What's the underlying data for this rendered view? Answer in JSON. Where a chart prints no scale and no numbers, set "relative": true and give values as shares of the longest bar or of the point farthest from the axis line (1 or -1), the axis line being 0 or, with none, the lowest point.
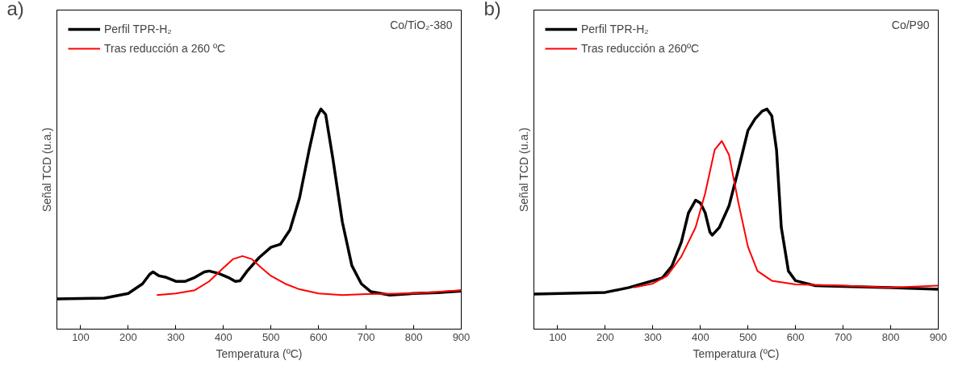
{
  "chart_data": [
    {
      "type": "line",
      "relative": true,
      "xlabel": "Temperatura (ºC)",
      "ylabel": "Señal TCD (u.a.)",
      "xlim": [
        50,
        900
      ],
      "xticks": [
        100,
        200,
        300,
        400,
        500,
        600,
        700,
        800,
        900
      ],
      "tick_labels": "x",
      "grid": false,
      "legend": "top left",
      "marker": "none",
      "line_style": "solid",
      "annotations": [
        "a)",
        "Co/TiO₂-380"
      ],
      "series": [
        {
          "name": "Perfil TPR-H₂",
          "color": "#000000",
          "x": [
            50,
            150,
            200,
            230,
            245,
            252,
            265,
            280,
            300,
            320,
            340,
            360,
            370,
            390,
            410,
            425,
            435,
            450,
            475,
            500,
            520,
            540,
            560,
            580,
            595,
            605,
            615,
            630,
            650,
            670,
            690,
            710,
            750,
            800,
            850,
            900
          ],
          "values": [
            0.137,
            0.141,
            0.162,
            0.206,
            0.249,
            0.26,
            0.242,
            0.235,
            0.217,
            0.217,
            0.235,
            0.26,
            0.264,
            0.253,
            0.235,
            0.217,
            0.22,
            0.264,
            0.325,
            0.372,
            0.386,
            0.451,
            0.596,
            0.812,
            0.957,
            1,
            0.975,
            0.776,
            0.487,
            0.289,
            0.206,
            0.17,
            0.155,
            0.162,
            0.166,
            0.173
          ]
        },
        {
          "name": "Tras reducción a 260 ºC",
          "color": "#ff0000",
          "x": [
            260,
            300,
            340,
            370,
            400,
            420,
            440,
            460,
            480,
            500,
            530,
            560,
            600,
            650,
            700,
            800,
            900
          ],
          "values": [
            0.155,
            0.162,
            0.177,
            0.217,
            0.278,
            0.318,
            0.332,
            0.318,
            0.278,
            0.242,
            0.206,
            0.181,
            0.162,
            0.155,
            0.159,
            0.162,
            0.177
          ]
        }
      ]
    },
    {
      "type": "line",
      "relative": true,
      "xlabel": "Temperatura (ºC)",
      "ylabel": "Señal TCD (u.a.)",
      "xlim": [
        50,
        900
      ],
      "xticks": [
        100,
        200,
        300,
        400,
        500,
        600,
        700,
        800,
        900
      ],
      "tick_labels": "x",
      "grid": false,
      "legend": "top left",
      "marker": "none",
      "line_style": "solid",
      "annotations": [
        "b)",
        "Co/P90"
      ],
      "series": [
        {
          "name": "Perfil TPR-H₂",
          "color": "#000000",
          "x": [
            50,
            200,
            250,
            300,
            320,
            340,
            360,
            375,
            390,
            400,
            410,
            420,
            425,
            440,
            460,
            480,
            500,
            515,
            530,
            540,
            550,
            560,
            570,
            585,
            600,
            640,
            700,
            800,
            900
          ],
          "values": [
            0.159,
            0.167,
            0.189,
            0.22,
            0.233,
            0.286,
            0.396,
            0.529,
            0.586,
            0.573,
            0.529,
            0.441,
            0.427,
            0.463,
            0.559,
            0.727,
            0.903,
            0.956,
            0.991,
            1,
            0.969,
            0.815,
            0.463,
            0.264,
            0.22,
            0.198,
            0.194,
            0.189,
            0.181
          ]
        },
        {
          "name": "Tras reducción a 260ºC",
          "color": "#ff0000",
          "x": [
            260,
            300,
            330,
            360,
            390,
            410,
            430,
            445,
            460,
            480,
            500,
            520,
            550,
            600,
            700,
            800,
            900
          ],
          "values": [
            0.189,
            0.207,
            0.242,
            0.33,
            0.463,
            0.617,
            0.815,
            0.855,
            0.793,
            0.573,
            0.374,
            0.264,
            0.22,
            0.203,
            0.198,
            0.189,
            0.198
          ]
        }
      ]
    }
  ]
}
